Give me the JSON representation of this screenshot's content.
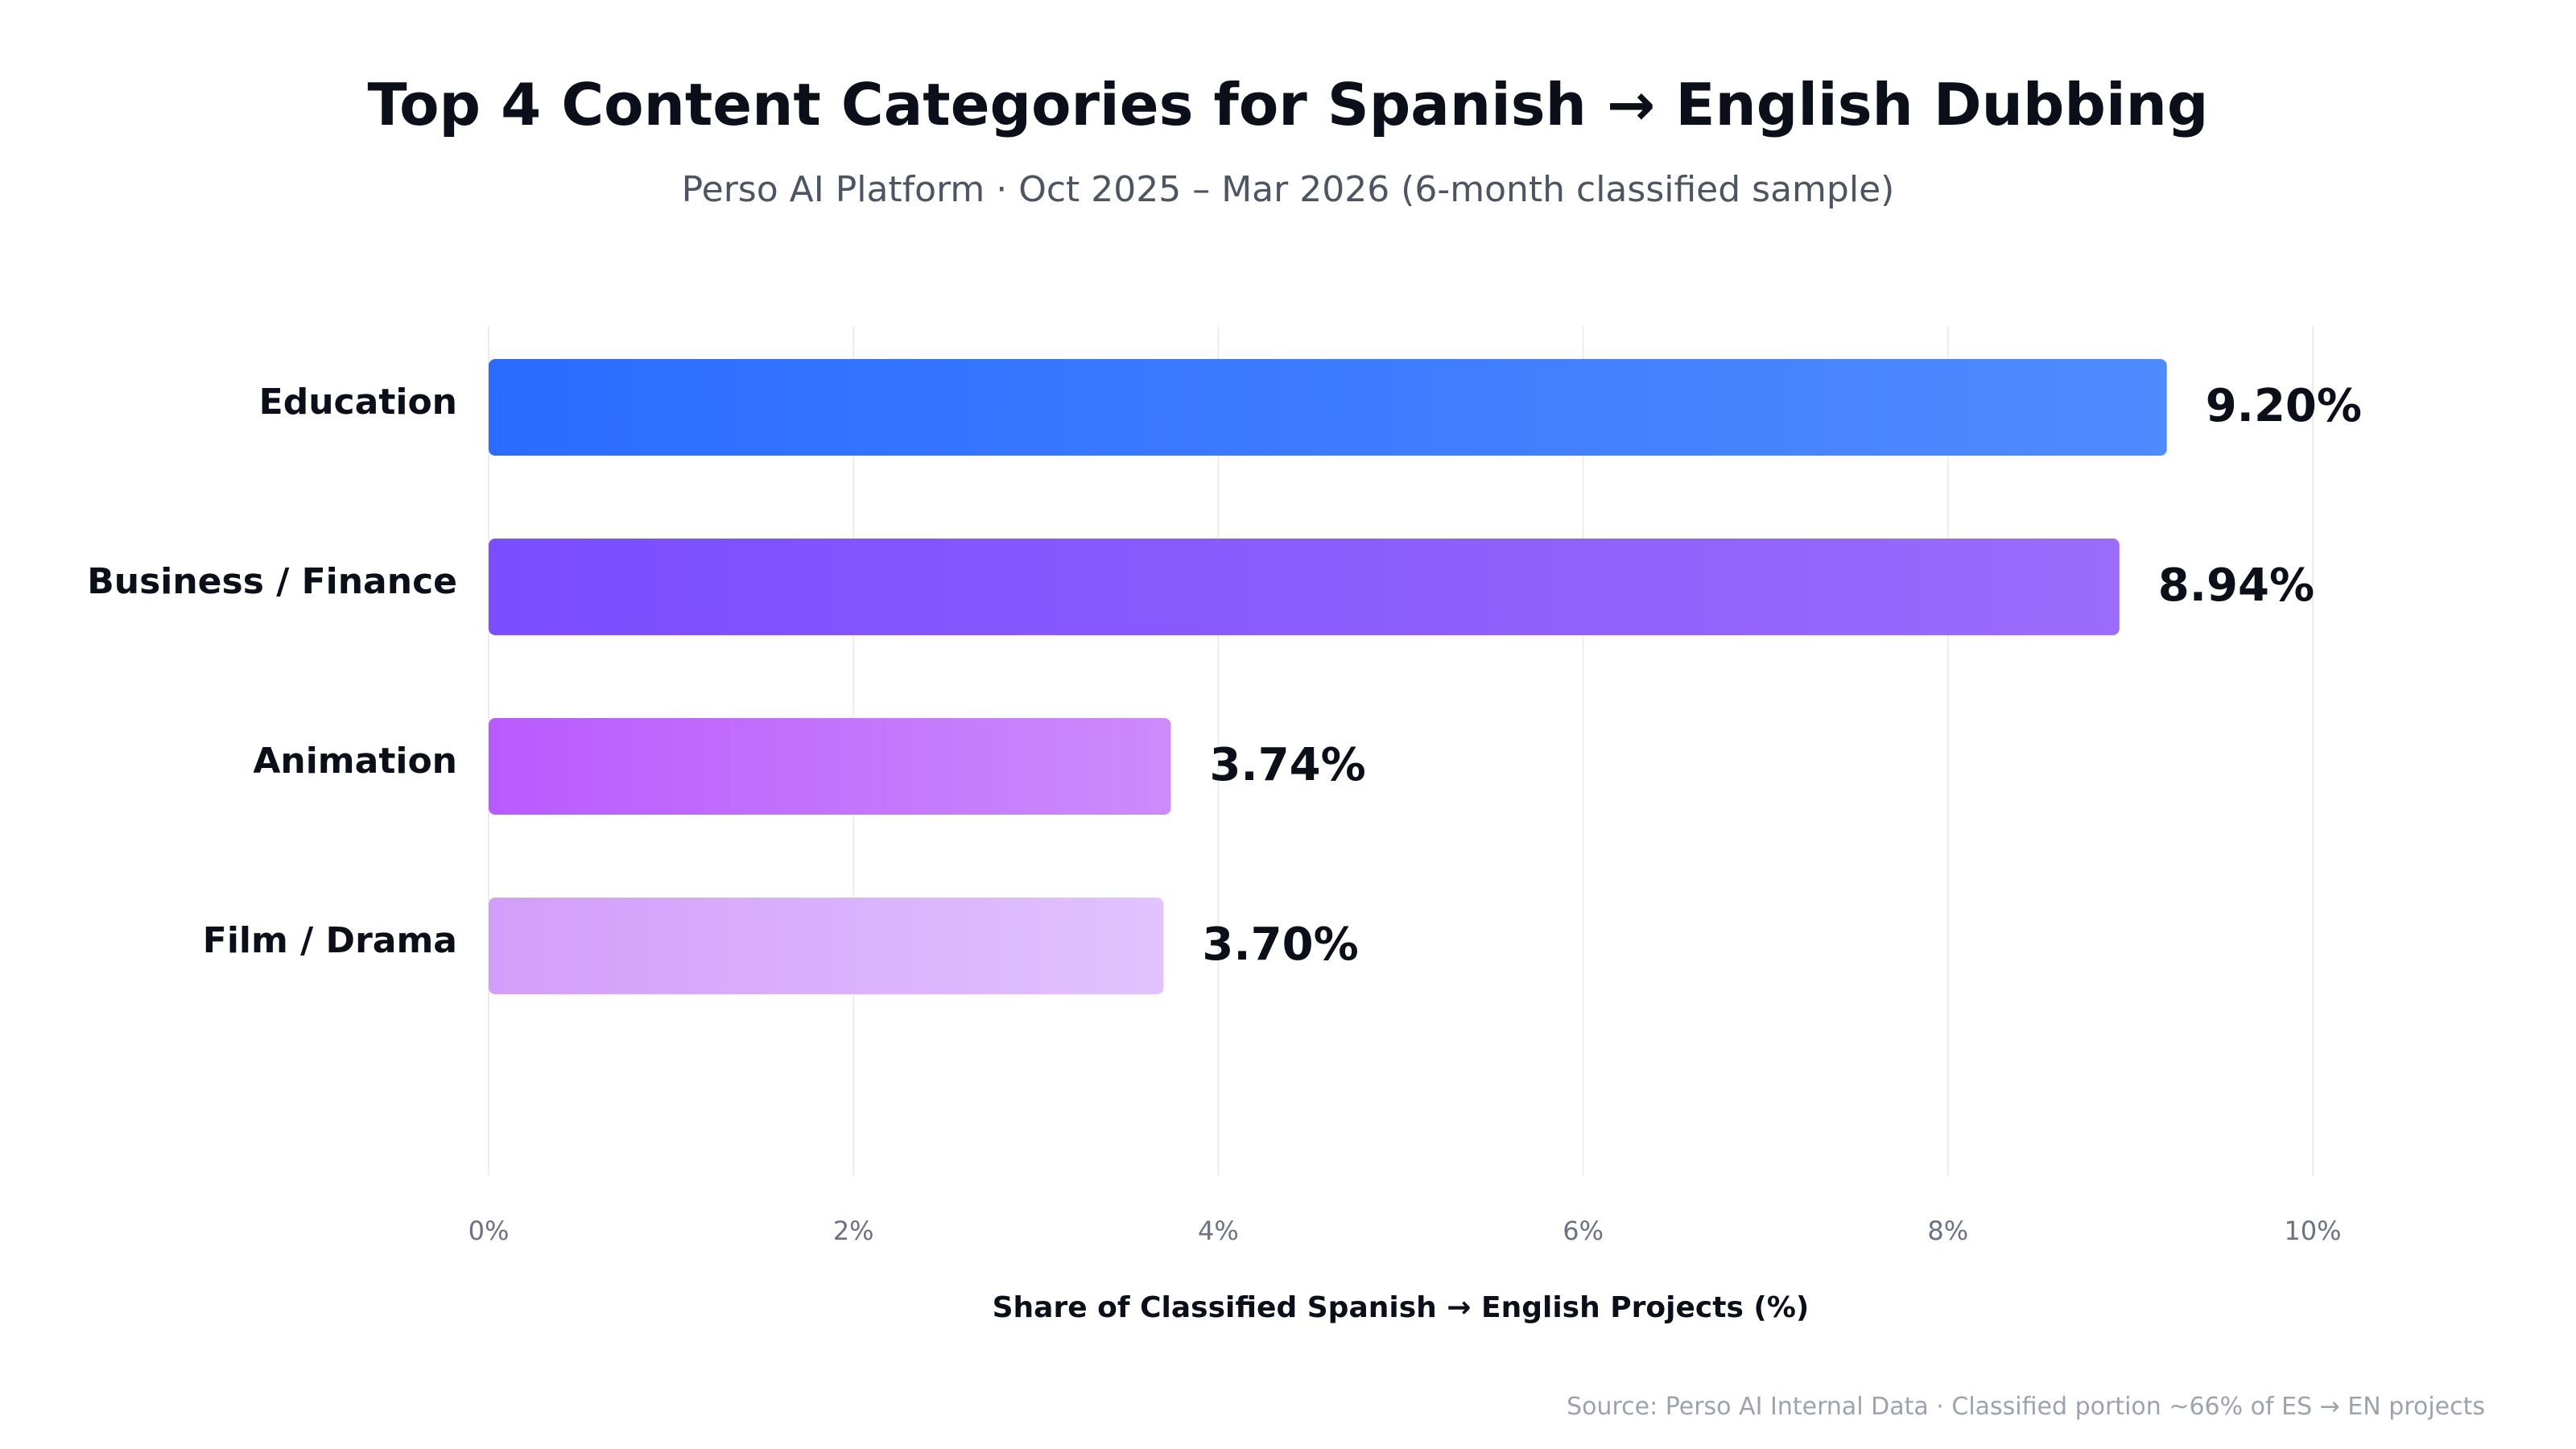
{
  "chart_data": {
    "type": "bar",
    "orientation": "horizontal",
    "title": "Top 4 Content Categories for Spanish → English Dubbing",
    "subtitle": "Perso AI Platform · Oct 2025 – Mar 2026 (6-month classified sample)",
    "categories": [
      "Education",
      "Business / Finance",
      "Animation",
      "Film / Drama"
    ],
    "values": [
      9.2,
      8.94,
      3.74,
      3.7
    ],
    "value_labels": [
      "9.20%",
      "8.94%",
      "3.74%",
      "3.70%"
    ],
    "xlabel": "Share of Classified Spanish → English Projects (%)",
    "ylabel": "",
    "xlim": [
      0,
      10
    ],
    "xticks": [
      0,
      2,
      4,
      6,
      8,
      10
    ],
    "xtick_labels": [
      "0%",
      "2%",
      "4%",
      "6%",
      "8%",
      "10%"
    ],
    "grid": "vertical",
    "legend": "none",
    "bar_gradients": [
      [
        "#2a6cff",
        "#4f8bff"
      ],
      [
        "#7a4dff",
        "#9b6bfb"
      ],
      [
        "#b95aff",
        "#cd8bfb"
      ],
      [
        "#d29ef9",
        "#e2c2ff"
      ]
    ],
    "source": "Source: Perso AI Internal Data · Classified portion ~66% of ES → EN projects"
  }
}
